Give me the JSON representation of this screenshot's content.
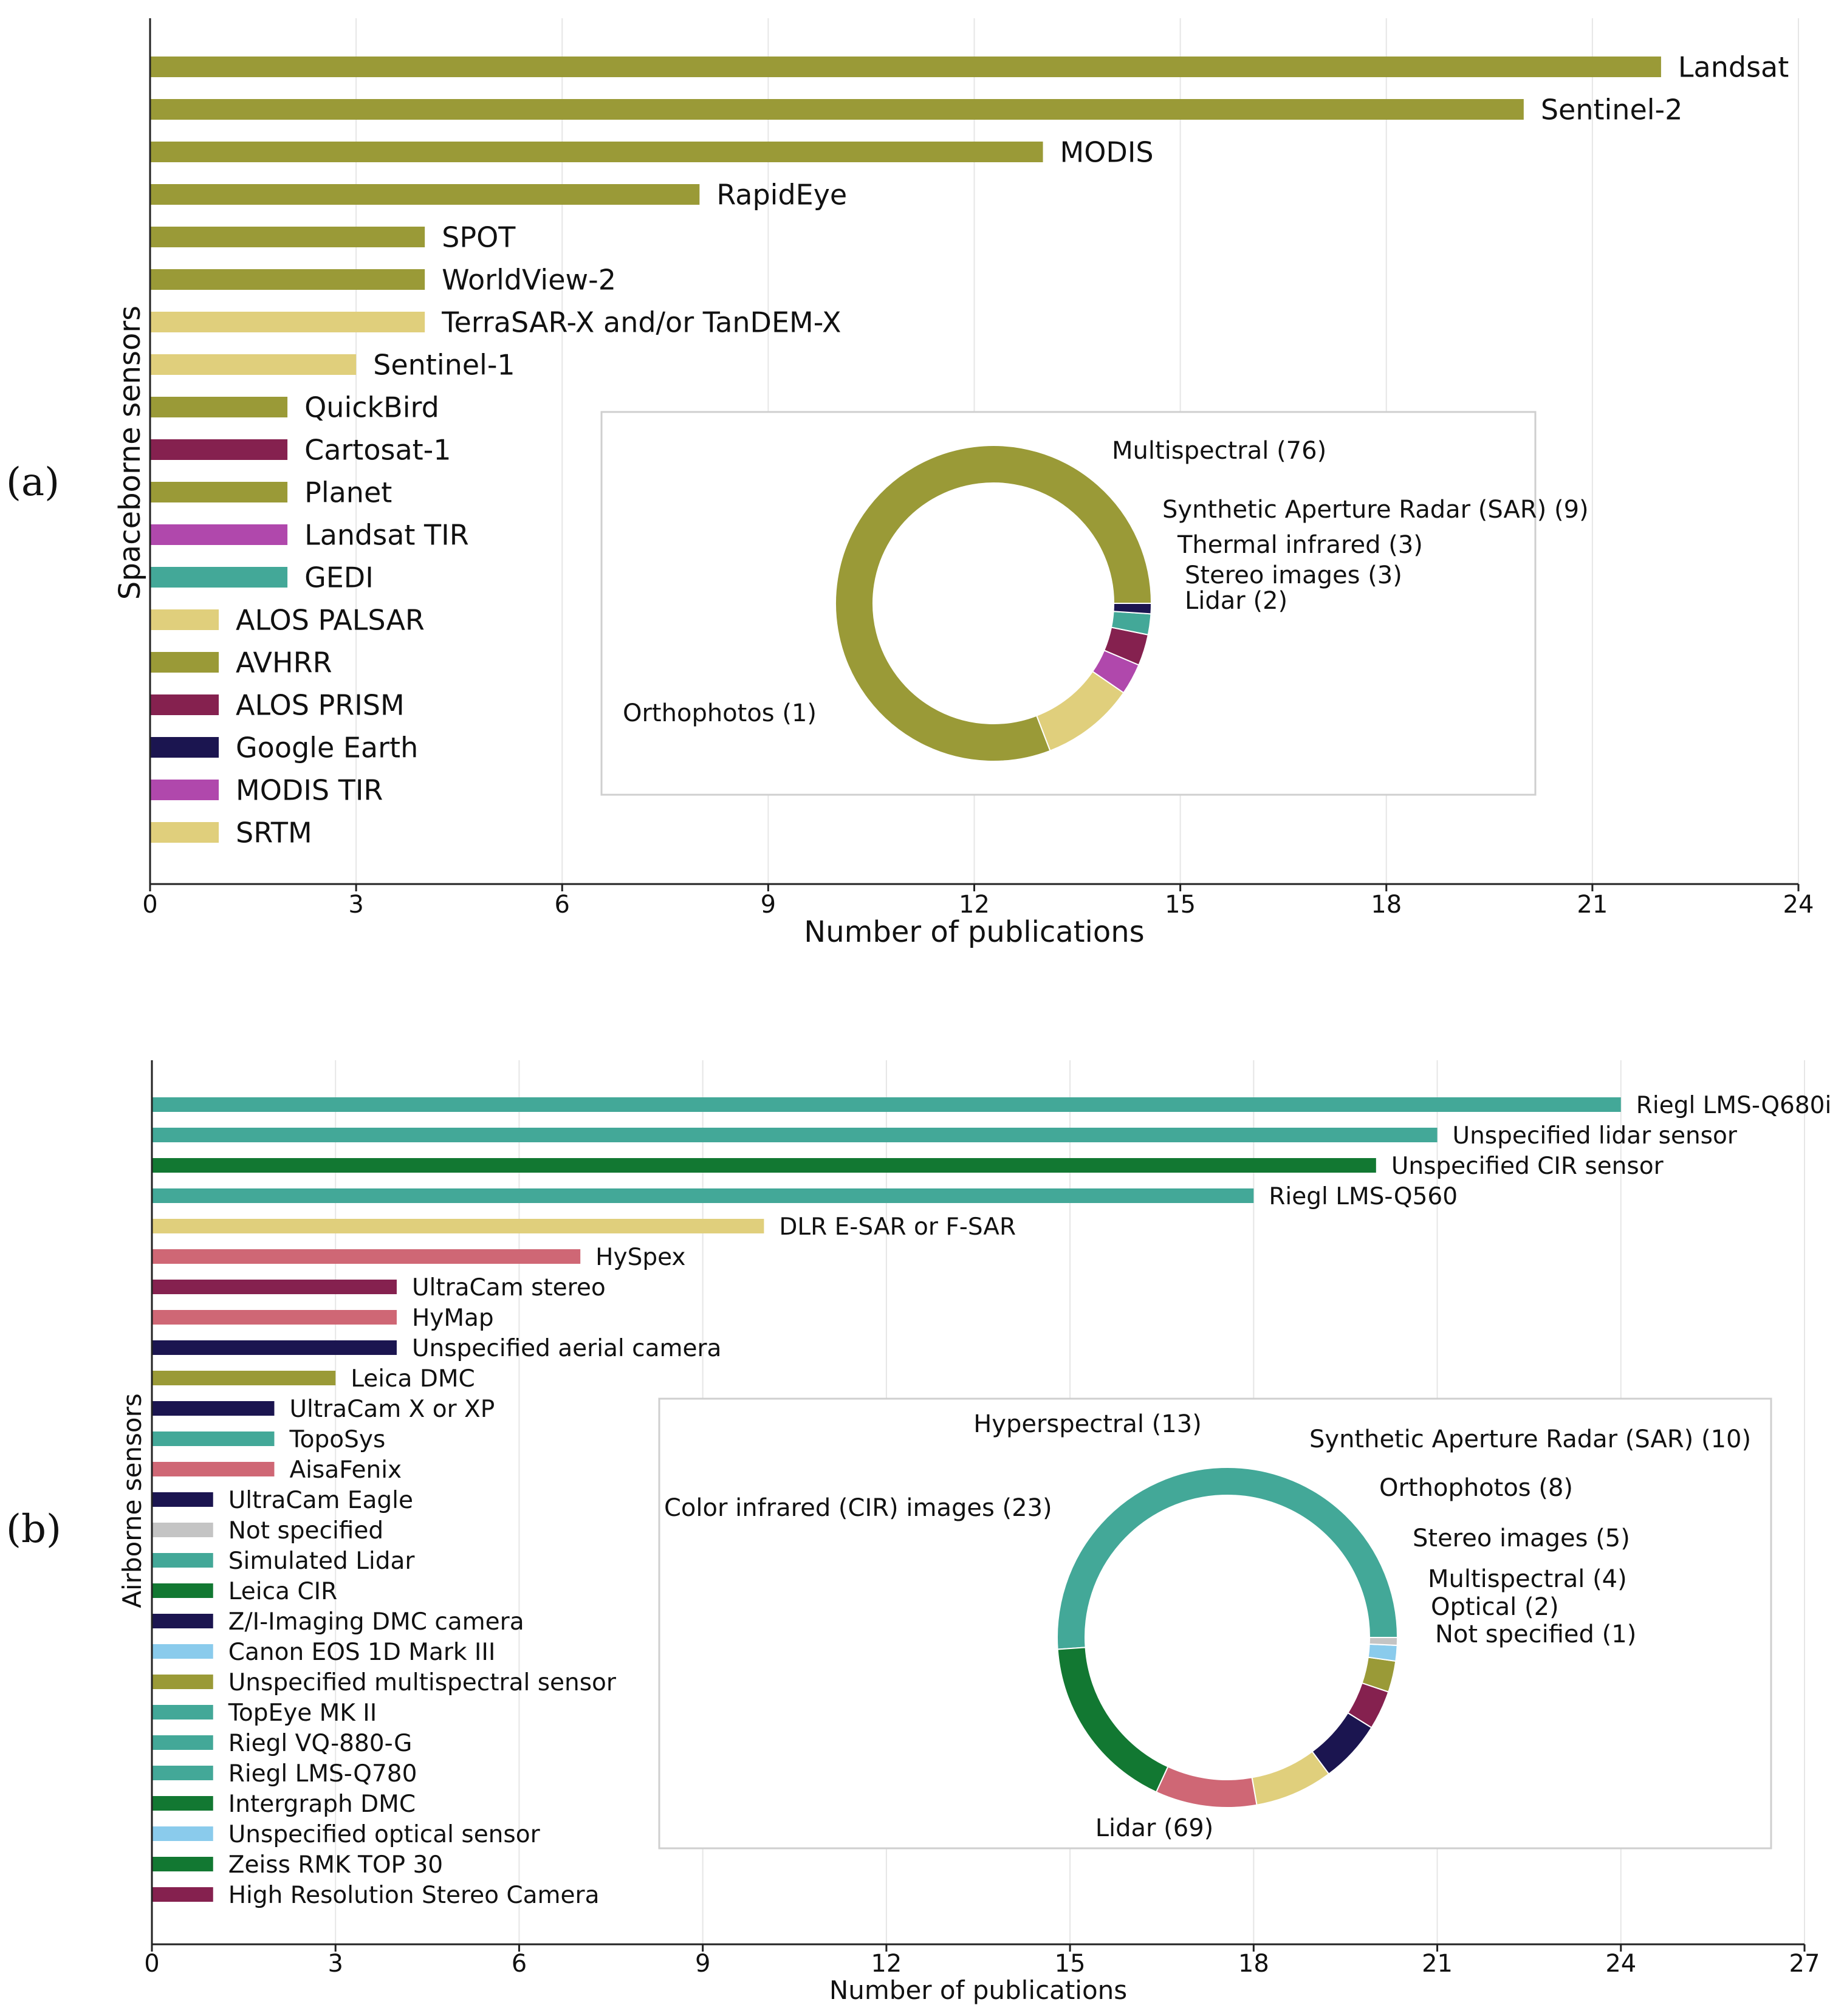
{
  "colors": {
    "multispectral": "#9a9a37",
    "sar": "#e0cf7c",
    "stereo": "#85214f",
    "thermal": "#b048ac",
    "lidar": "#43a898",
    "ortho": "#1b1550",
    "cir": "#127832",
    "hyper": "#cf6775",
    "optical": "#8acbec",
    "unspecified": "#c4c4c4"
  },
  "chart_data": [
    {
      "type": "bar",
      "orientation": "horizontal",
      "panel_label": "(a)",
      "xlabel": "Number of publications",
      "ylabel": "Spaceborne sensors",
      "xlim": [
        0,
        24
      ],
      "xticks": [
        "0",
        "3",
        "6",
        "9",
        "12",
        "15",
        "18",
        "21",
        "24"
      ],
      "grid": "vertical",
      "bars": [
        {
          "label": "Landsat",
          "value": 22,
          "group": "multispectral"
        },
        {
          "label": "Sentinel-2",
          "value": 20,
          "group": "multispectral"
        },
        {
          "label": "MODIS",
          "value": 13,
          "group": "multispectral"
        },
        {
          "label": "RapidEye",
          "value": 8,
          "group": "multispectral"
        },
        {
          "label": "SPOT",
          "value": 4,
          "group": "multispectral"
        },
        {
          "label": "WorldView-2",
          "value": 4,
          "group": "multispectral"
        },
        {
          "label": "TerraSAR-X and/or TanDEM-X",
          "value": 4,
          "group": "sar"
        },
        {
          "label": "Sentinel-1",
          "value": 3,
          "group": "sar"
        },
        {
          "label": "QuickBird",
          "value": 2,
          "group": "multispectral"
        },
        {
          "label": "Cartosat-1",
          "value": 2,
          "group": "stereo"
        },
        {
          "label": "Planet",
          "value": 2,
          "group": "multispectral"
        },
        {
          "label": "Landsat TIR",
          "value": 2,
          "group": "thermal"
        },
        {
          "label": "GEDI",
          "value": 2,
          "group": "lidar"
        },
        {
          "label": "ALOS PALSAR",
          "value": 1,
          "group": "sar"
        },
        {
          "label": "AVHRR",
          "value": 1,
          "group": "multispectral"
        },
        {
          "label": "ALOS PRISM",
          "value": 1,
          "group": "stereo"
        },
        {
          "label": "Google Earth",
          "value": 1,
          "group": "ortho"
        },
        {
          "label": "MODIS TIR",
          "value": 1,
          "group": "thermal"
        },
        {
          "label": "SRTM",
          "value": 1,
          "group": "sar"
        }
      ],
      "inset_donut": {
        "type": "pie",
        "slices": [
          {
            "label": "Multispectral (76)",
            "value": 76,
            "group": "multispectral"
          },
          {
            "label": "Synthetic Aperture Radar (SAR) (9)",
            "value": 9,
            "group": "sar"
          },
          {
            "label": "Thermal infrared (3)",
            "value": 3,
            "group": "thermal"
          },
          {
            "label": "Stereo images (3)",
            "value": 3,
            "group": "stereo"
          },
          {
            "label": "Lidar (2)",
            "value": 2,
            "group": "lidar"
          },
          {
            "label": "Orthophotos (1)",
            "value": 1,
            "group": "ortho"
          }
        ]
      }
    },
    {
      "type": "bar",
      "orientation": "horizontal",
      "panel_label": "(b)",
      "xlabel": "Number of publications",
      "ylabel": "Airborne sensors",
      "xlim": [
        0,
        27
      ],
      "xticks": [
        "0",
        "3",
        "6",
        "9",
        "12",
        "15",
        "18",
        "21",
        "24",
        "27"
      ],
      "grid": "vertical",
      "bars": [
        {
          "label": "Riegl LMS-Q680i",
          "value": 24,
          "group": "lidar"
        },
        {
          "label": "Unspecified lidar sensor",
          "value": 21,
          "group": "lidar"
        },
        {
          "label": "Unspecified CIR sensor",
          "value": 20,
          "group": "cir"
        },
        {
          "label": "Riegl LMS-Q560",
          "value": 18,
          "group": "lidar"
        },
        {
          "label": "DLR E-SAR or F-SAR",
          "value": 10,
          "group": "sar"
        },
        {
          "label": "HySpex",
          "value": 7,
          "group": "hyper"
        },
        {
          "label": "UltraCam stereo",
          "value": 4,
          "group": "stereo"
        },
        {
          "label": "HyMap",
          "value": 4,
          "group": "hyper"
        },
        {
          "label": "Unspecified aerial camera",
          "value": 4,
          "group": "ortho"
        },
        {
          "label": "Leica DMC",
          "value": 3,
          "group": "multispectral"
        },
        {
          "label": "UltraCam X or XP",
          "value": 2,
          "group": "ortho"
        },
        {
          "label": "TopoSys",
          "value": 2,
          "group": "lidar"
        },
        {
          "label": "AisaFenix",
          "value": 2,
          "group": "hyper"
        },
        {
          "label": "UltraCam Eagle",
          "value": 1,
          "group": "ortho"
        },
        {
          "label": "Not specified",
          "value": 1,
          "group": "unspecified"
        },
        {
          "label": "Simulated Lidar",
          "value": 1,
          "group": "lidar"
        },
        {
          "label": "Leica CIR",
          "value": 1,
          "group": "cir"
        },
        {
          "label": "Z/I-Imaging DMC camera",
          "value": 1,
          "group": "ortho"
        },
        {
          "label": "Canon EOS 1D Mark III",
          "value": 1,
          "group": "optical"
        },
        {
          "label": "Unspecified multispectral sensor",
          "value": 1,
          "group": "multispectral"
        },
        {
          "label": "TopEye MK II",
          "value": 1,
          "group": "lidar"
        },
        {
          "label": "Riegl VQ-880-G",
          "value": 1,
          "group": "lidar"
        },
        {
          "label": "Riegl LMS-Q780",
          "value": 1,
          "group": "lidar"
        },
        {
          "label": "Intergraph DMC",
          "value": 1,
          "group": "cir"
        },
        {
          "label": "Unspecified optical sensor",
          "value": 1,
          "group": "optical"
        },
        {
          "label": "Zeiss RMK TOP 30",
          "value": 1,
          "group": "cir"
        },
        {
          "label": "High Resolution Stereo Camera",
          "value": 1,
          "group": "stereo"
        }
      ],
      "inset_donut": {
        "type": "pie",
        "slices": [
          {
            "label": "Lidar (69)",
            "value": 69,
            "group": "lidar"
          },
          {
            "label": "Color infrared (CIR) images (23)",
            "value": 23,
            "group": "cir"
          },
          {
            "label": "Hyperspectral (13)",
            "value": 13,
            "group": "hyper"
          },
          {
            "label": "Synthetic Aperture Radar (SAR) (10)",
            "value": 10,
            "group": "sar"
          },
          {
            "label": "Orthophotos (8)",
            "value": 8,
            "group": "ortho"
          },
          {
            "label": "Stereo images (5)",
            "value": 5,
            "group": "stereo"
          },
          {
            "label": "Multispectral (4)",
            "value": 4,
            "group": "multispectral"
          },
          {
            "label": "Optical (2)",
            "value": 2,
            "group": "optical"
          },
          {
            "label": "Not specified (1)",
            "value": 1,
            "group": "unspecified"
          }
        ]
      }
    }
  ]
}
